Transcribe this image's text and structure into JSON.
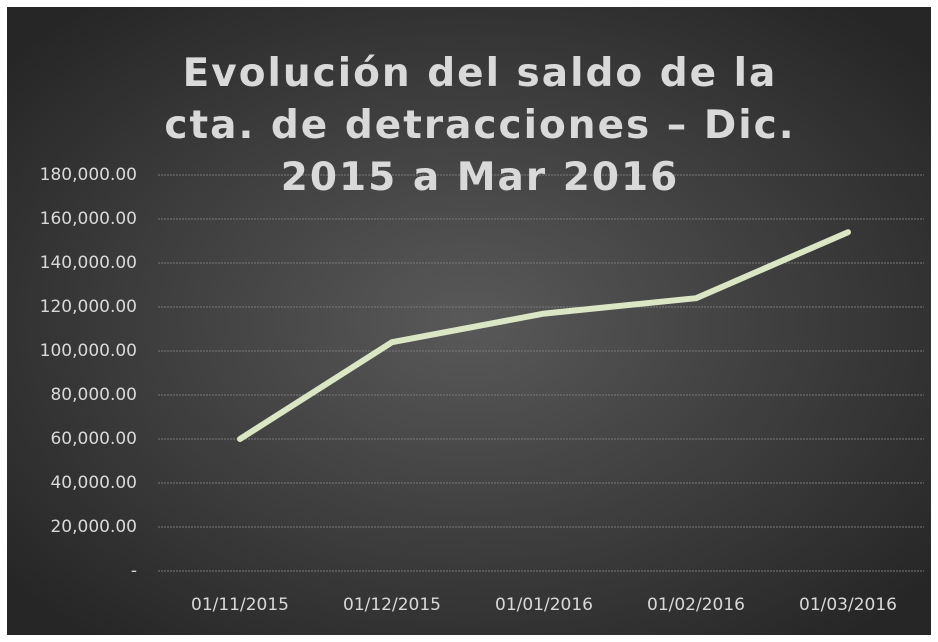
{
  "chart_data": {
    "type": "line",
    "title": "Evolución del saldo de la cta. de detracciones – Dic. 2015 a Mar 2016",
    "categories": [
      "01/11/2015",
      "01/12/2015",
      "01/01/2016",
      "01/02/2016",
      "01/03/2016"
    ],
    "values": [
      60000,
      104000,
      117000,
      124000,
      154000
    ],
    "color": "#dbe6c4",
    "ylim": [
      0,
      180000
    ],
    "yticks": [
      {
        "value": 0,
        "label": "-"
      },
      {
        "value": 20000,
        "label": "20,000.00"
      },
      {
        "value": 40000,
        "label": "40,000.00"
      },
      {
        "value": 60000,
        "label": "60,000.00"
      },
      {
        "value": 80000,
        "label": "80,000.00"
      },
      {
        "value": 100000,
        "label": "100,000.00"
      },
      {
        "value": 120000,
        "label": "120,000.00"
      },
      {
        "value": 140000,
        "label": "140,000.00"
      },
      {
        "value": 160000,
        "label": "160,000.00"
      },
      {
        "value": 180000,
        "label": "180,000.00"
      }
    ],
    "grid": true
  }
}
